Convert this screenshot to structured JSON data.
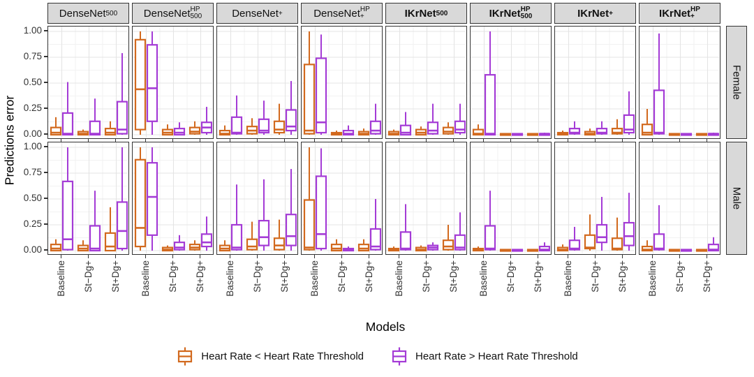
{
  "chart_data": {
    "type": "boxplot",
    "title": "",
    "xlabel": "Models",
    "ylabel": "Predictions error",
    "x_categories": [
      "Baseline",
      "St−Dg+",
      "St+Dg+"
    ],
    "y_tick_labels": [
      "1.00",
      "0.75",
      "0.50",
      "0.25",
      "0.00"
    ],
    "y_tick_values": [
      1,
      0.75,
      0.5,
      0.25,
      0
    ],
    "ylim": [
      0,
      1
    ],
    "grid": "major-and-minor",
    "legend_position": "bottom",
    "row_facets": [
      "Female",
      "Male"
    ],
    "col_facets": [
      {
        "base": "DenseNet",
        "sup": "",
        "sub": "500",
        "bold": false
      },
      {
        "base": "DenseNet",
        "sup": "HP",
        "sub": "500",
        "bold": false
      },
      {
        "base": "DenseNet",
        "sup": "",
        "sub": "+",
        "bold": false
      },
      {
        "base": "DenseNet",
        "sup": "HP",
        "sub": "+",
        "bold": false
      },
      {
        "base": "IKrNet",
        "sup": "",
        "sub": "500",
        "bold": true
      },
      {
        "base": "IKrNet",
        "sup": "HP",
        "sub": "500",
        "bold": true
      },
      {
        "base": "IKrNet",
        "sup": "",
        "sub": "+",
        "bold": true
      },
      {
        "base": "IKrNet",
        "sup": "HP",
        "sub": "+",
        "bold": true
      }
    ],
    "legend": [
      {
        "label": "Heart Rate < Heart Rate Threshold",
        "color": "#D2691E"
      },
      {
        "label": "Heart Rate > Heart Rate Threshold",
        "color": "#A43BD6"
      }
    ],
    "box_stats_order": [
      "whisker_low",
      "q1",
      "median",
      "q3",
      "whisker_high"
    ],
    "panels": {
      "Female": [
        {
          "lt": [
            [
              0,
              0,
              0.02,
              0.07,
              0.17
            ],
            [
              0,
              0,
              0.01,
              0.03,
              0.05
            ],
            [
              0,
              0,
              0.02,
              0.06,
              0.13
            ]
          ],
          "gt": [
            [
              0,
              0,
              0.01,
              0.21,
              0.51
            ],
            [
              0,
              0,
              0.01,
              0.13,
              0.35
            ],
            [
              0,
              0.01,
              0.05,
              0.32,
              0.79
            ]
          ]
        },
        {
          "lt": [
            [
              0,
              0.05,
              0.44,
              0.92,
              1
            ],
            [
              0,
              0,
              0.02,
              0.05,
              0.1
            ],
            [
              0,
              0.01,
              0.03,
              0.07,
              0.13
            ]
          ],
          "gt": [
            [
              0,
              0.13,
              0.45,
              0.87,
              1
            ],
            [
              0,
              0,
              0.02,
              0.06,
              0.12
            ],
            [
              0,
              0.02,
              0.07,
              0.12,
              0.27
            ]
          ]
        },
        {
          "lt": [
            [
              0,
              0,
              0.01,
              0.04,
              0.09
            ],
            [
              0,
              0.01,
              0.04,
              0.08,
              0.16
            ],
            [
              0,
              0.02,
              0.05,
              0.13,
              0.3
            ]
          ],
          "gt": [
            [
              0,
              0.01,
              0.02,
              0.17,
              0.38
            ],
            [
              0,
              0.02,
              0.04,
              0.15,
              0.33
            ],
            [
              0,
              0.04,
              0.08,
              0.24,
              0.52
            ]
          ]
        },
        {
          "lt": [
            [
              0,
              0.01,
              0.04,
              0.68,
              1
            ],
            [
              0,
              0,
              0.01,
              0.02,
              0.04
            ],
            [
              0,
              0,
              0.01,
              0.03,
              0.06
            ]
          ],
          "gt": [
            [
              0,
              0.02,
              0.12,
              0.74,
              0.97
            ],
            [
              0,
              0,
              0.01,
              0.04,
              0.09
            ],
            [
              0,
              0.01,
              0.04,
              0.13,
              0.3
            ]
          ]
        },
        {
          "lt": [
            [
              0,
              0,
              0.01,
              0.03,
              0.05
            ],
            [
              0,
              0,
              0.02,
              0.05,
              0.08
            ],
            [
              0,
              0.01,
              0.03,
              0.07,
              0.12
            ]
          ],
          "gt": [
            [
              0,
              0,
              0.02,
              0.09,
              0.22
            ],
            [
              0,
              0.01,
              0.04,
              0.12,
              0.3
            ],
            [
              0,
              0.02,
              0.05,
              0.13,
              0.3
            ]
          ]
        },
        {
          "lt": [
            [
              0,
              0,
              0.01,
              0.05,
              0.1
            ],
            [
              0,
              0,
              0,
              0.01,
              0.01
            ],
            [
              0,
              0,
              0,
              0.01,
              0.01
            ]
          ],
          "gt": [
            [
              0,
              0,
              0.01,
              0.58,
              1
            ],
            [
              0,
              0,
              0,
              0.01,
              0.01
            ],
            [
              0,
              0,
              0.01,
              0.01,
              0.02
            ]
          ]
        },
        {
          "lt": [
            [
              0,
              0,
              0.01,
              0.02,
              0.04
            ],
            [
              0,
              0,
              0.01,
              0.03,
              0.06
            ],
            [
              0,
              0.01,
              0.02,
              0.06,
              0.15
            ]
          ],
          "gt": [
            [
              0,
              0.01,
              0.02,
              0.06,
              0.13
            ],
            [
              0,
              0.01,
              0.02,
              0.06,
              0.13
            ],
            [
              0,
              0.02,
              0.05,
              0.19,
              0.42
            ]
          ]
        },
        {
          "lt": [
            [
              0,
              0,
              0.02,
              0.1,
              0.25
            ],
            [
              0,
              0,
              0,
              0.01,
              0.01
            ],
            [
              0,
              0,
              0,
              0.01,
              0.01
            ]
          ],
          "gt": [
            [
              0,
              0.01,
              0.02,
              0.43,
              0.98
            ],
            [
              0,
              0,
              0,
              0.01,
              0.01
            ],
            [
              0,
              0,
              0.01,
              0.01,
              0.02
            ]
          ]
        }
      ],
      "Male": [
        {
          "lt": [
            [
              0,
              0,
              0.02,
              0.06,
              0.11
            ],
            [
              0,
              0,
              0.02,
              0.05,
              0.1
            ],
            [
              0,
              0,
              0.04,
              0.17,
              0.42
            ]
          ],
          "gt": [
            [
              0,
              0.01,
              0.11,
              0.67,
              1
            ],
            [
              0,
              0,
              0.02,
              0.24,
              0.58
            ],
            [
              0,
              0.02,
              0.19,
              0.47,
              1
            ]
          ]
        },
        {
          "lt": [
            [
              0,
              0.04,
              0.22,
              0.88,
              1
            ],
            [
              0,
              0,
              0.01,
              0.03,
              0.05
            ],
            [
              0,
              0.01,
              0.03,
              0.06,
              0.1
            ]
          ],
          "gt": [
            [
              0,
              0.15,
              0.52,
              0.85,
              1
            ],
            [
              0,
              0.01,
              0.03,
              0.08,
              0.15
            ],
            [
              0,
              0.04,
              0.08,
              0.16,
              0.33
            ]
          ]
        },
        {
          "lt": [
            [
              0,
              0,
              0.02,
              0.05,
              0.1
            ],
            [
              0,
              0.01,
              0.04,
              0.11,
              0.28
            ],
            [
              0,
              0.01,
              0.05,
              0.12,
              0.3
            ]
          ],
          "gt": [
            [
              0,
              0.01,
              0.03,
              0.25,
              0.64
            ],
            [
              0,
              0.05,
              0.13,
              0.29,
              0.69
            ],
            [
              0,
              0.05,
              0.14,
              0.35,
              0.79
            ]
          ]
        },
        {
          "lt": [
            [
              0,
              0.01,
              0.03,
              0.49,
              1
            ],
            [
              0,
              0,
              0.02,
              0.06,
              0.11
            ],
            [
              0,
              0,
              0.02,
              0.06,
              0.11
            ]
          ],
          "gt": [
            [
              0,
              0.02,
              0.16,
              0.72,
              0.99
            ],
            [
              0,
              0,
              0.01,
              0.02,
              0.04
            ],
            [
              0,
              0.01,
              0.04,
              0.21,
              0.5
            ]
          ]
        },
        {
          "lt": [
            [
              0,
              0,
              0.01,
              0.02,
              0.04
            ],
            [
              0,
              0,
              0.01,
              0.03,
              0.05
            ],
            [
              0,
              0.01,
              0.04,
              0.1,
              0.25
            ]
          ],
          "gt": [
            [
              0,
              0.01,
              0.02,
              0.18,
              0.45
            ],
            [
              0,
              0.01,
              0.03,
              0.05,
              0.08
            ],
            [
              0,
              0.01,
              0.03,
              0.15,
              0.37
            ]
          ]
        },
        {
          "lt": [
            [
              0,
              0,
              0.01,
              0.02,
              0.04
            ],
            [
              0,
              0,
              0,
              0.01,
              0.01
            ],
            [
              0,
              0,
              0,
              0.01,
              0.01
            ]
          ],
          "gt": [
            [
              0,
              0.01,
              0.02,
              0.24,
              0.58
            ],
            [
              0,
              0,
              0,
              0.01,
              0.01
            ],
            [
              0,
              0,
              0.01,
              0.04,
              0.08
            ]
          ]
        },
        {
          "lt": [
            [
              0,
              0,
              0.01,
              0.03,
              0.06
            ],
            [
              0,
              0.02,
              0.03,
              0.15,
              0.35
            ],
            [
              0,
              0.01,
              0.02,
              0.12,
              0.32
            ]
          ],
          "gt": [
            [
              0,
              0.01,
              0.02,
              0.1,
              0.23
            ],
            [
              0,
              0.08,
              0.13,
              0.25,
              0.52
            ],
            [
              0,
              0.05,
              0.14,
              0.27,
              0.56
            ]
          ]
        },
        {
          "lt": [
            [
              0,
              0,
              0.01,
              0.04,
              0.1
            ],
            [
              0,
              0,
              0,
              0.01,
              0.01
            ],
            [
              0,
              0,
              0,
              0.01,
              0.01
            ]
          ],
          "gt": [
            [
              0,
              0.01,
              0.02,
              0.16,
              0.44
            ],
            [
              0,
              0,
              0,
              0.01,
              0.01
            ],
            [
              0,
              0,
              0.01,
              0.06,
              0.13
            ]
          ]
        }
      ]
    },
    "colors": {
      "series_lt": "#D2691E",
      "series_gt": "#A43BD6",
      "strip_bg": "#D9D9D9",
      "panel_border": "#333333",
      "grid_major": "#E4E4E4",
      "grid_minor": "#F2F2F2"
    }
  }
}
